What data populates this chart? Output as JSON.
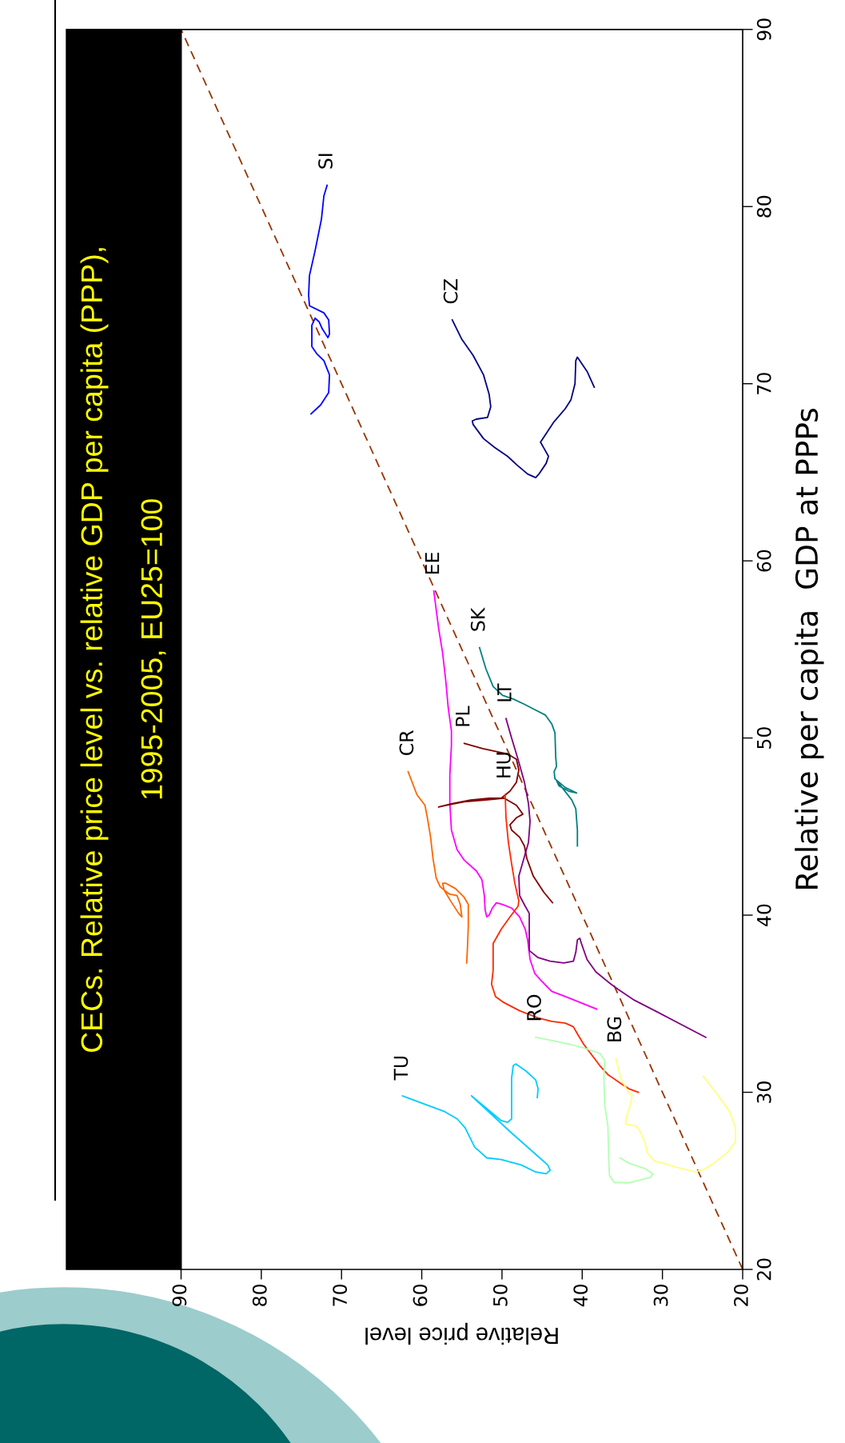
{
  "chart_data": {
    "type": "line",
    "title": "CECs. Relative price level vs. relative GDP per capita (PPP),",
    "subtitle": "1995-2005, EU25=100",
    "xlabel": "Relative price level",
    "ylabel": "Relative per capita  GDP at PPPs",
    "xlim": [
      90,
      20
    ],
    "xticks": [
      90,
      80,
      70,
      60,
      50,
      40,
      30,
      20
    ],
    "ylim": [
      20,
      90
    ],
    "yticks": [
      20,
      30,
      40,
      50,
      60,
      70,
      80,
      90
    ],
    "line_style": "solid",
    "series": [
      {
        "color": "#993300",
        "line_style": "dashed",
        "x": [
          20,
          90
        ],
        "values": [
          20,
          90
        ]
      },
      {
        "name": "SI",
        "color": "#0000ff",
        "x": [
          71.8,
          72.2,
          72.5,
          73.3,
          74.0,
          74.1,
          74.0,
          72.2,
          71.6,
          71.5,
          71.7,
          72.4,
          72.8,
          73.3,
          73.7,
          73.7,
          73.1,
          72.2,
          71.5,
          71.6,
          72.6,
          73.8
        ],
        "values": [
          81.2,
          80.6,
          79.3,
          77.5,
          76.1,
          75.0,
          74.4,
          74.0,
          73.6,
          72.8,
          72.6,
          73.1,
          73.5,
          73.7,
          73.3,
          72.1,
          71.7,
          71.3,
          70.5,
          69.5,
          68.8,
          68.3
        ]
      },
      {
        "name": "CZ",
        "color": "#000080",
        "x": [
          56.2,
          55.0,
          53.6,
          52.3,
          51.6,
          51.4,
          51.8,
          53.2,
          53.7,
          53.6,
          52.3,
          50.9,
          49.3,
          48.1,
          46.8,
          45.8,
          45.4,
          44.5,
          44.2,
          44.7,
          45.2,
          44.9,
          43.6,
          42.1,
          41.4,
          40.9,
          40.8,
          40.6,
          39.4,
          38.5
        ],
        "values": [
          73.6,
          72.5,
          71.6,
          70.5,
          69.4,
          68.7,
          68.1,
          68.0,
          67.9,
          67.7,
          66.9,
          66.4,
          65.9,
          65.4,
          64.9,
          64.7,
          64.9,
          65.5,
          65.9,
          66.3,
          66.7,
          66.9,
          67.8,
          68.6,
          69.1,
          70.0,
          71.3,
          71.5,
          70.7,
          69.8
        ]
      },
      {
        "name": "EE",
        "color": "#ff00ff",
        "x": [
          58.5,
          57.9,
          57.4,
          57.0,
          56.7,
          56.3,
          56.3,
          56.5,
          56.5,
          56.3,
          55.6,
          54.7,
          53.2,
          52.5,
          52.2,
          52.1,
          51.9,
          51.6,
          51.2,
          50.7,
          49.9,
          48.8,
          47.8,
          47.1,
          46.8,
          46.5,
          45.9,
          45.1,
          43.8,
          42.1,
          38.2
        ],
        "values": [
          58.3,
          56.2,
          54.8,
          53.2,
          51.7,
          50.4,
          49.6,
          47.9,
          46.3,
          44.8,
          43.7,
          43.1,
          42.5,
          42.0,
          41.1,
          40.3,
          39.9,
          40.0,
          40.4,
          40.7,
          40.6,
          40.4,
          39.9,
          39.2,
          38.6,
          37.5,
          36.7,
          36.3,
          35.7,
          35.4,
          34.7
        ]
      },
      {
        "name": "SK",
        "color": "#008080",
        "x": [
          52.8,
          52.0,
          51.1,
          49.9,
          48.6,
          47.2,
          45.9,
          44.6,
          43.8,
          43.4,
          43.3,
          43.2,
          43.5,
          43.4,
          42.1,
          40.7,
          41.7,
          42.9,
          43.2,
          41.3,
          40.8,
          40.6,
          40.6
        ],
        "values": [
          55.1,
          53.9,
          52.9,
          52.4,
          52.2,
          51.9,
          51.6,
          51.3,
          50.8,
          50.3,
          48.9,
          48.4,
          48.1,
          47.7,
          47.2,
          46.9,
          47.0,
          47.3,
          47.6,
          46.5,
          46.0,
          44.8,
          43.9
        ]
      },
      {
        "name": "LT",
        "color": "#800080",
        "x": [
          49.5,
          48.8,
          48.0,
          47.2,
          46.7,
          46.5,
          46.7,
          47.4,
          47.9,
          47.8,
          47.1,
          46.6,
          46.6,
          45.5,
          44.0,
          42.3,
          41.1,
          40.8,
          40.6,
          40.3,
          40.1,
          39.4,
          38.3,
          36.4,
          35.5,
          33.5,
          30.5,
          24.6
        ],
        "values": [
          51.1,
          50.0,
          48.8,
          47.5,
          46.3,
          45.3,
          44.1,
          43.0,
          42.2,
          41.1,
          40.5,
          40.1,
          38.0,
          37.6,
          37.4,
          37.3,
          37.4,
          37.9,
          38.6,
          38.7,
          38.4,
          37.5,
          36.8,
          36.1,
          35.8,
          35.2,
          34.5,
          33.1
        ]
      },
      {
        "name": "PL",
        "color": "#800000",
        "x": [
          54.7,
          52.4,
          49.3,
          48.2,
          47.9,
          48.2,
          49.0,
          50.1,
          51.6,
          53.9,
          56.2,
          57.9,
          57.0,
          54.7,
          52.0,
          49.7,
          48.2,
          47.4,
          48.2,
          49.0,
          48.8,
          47.8,
          47.2,
          46.9,
          46.1,
          44.8,
          43.7
        ],
        "values": [
          49.7,
          49.4,
          49.1,
          48.8,
          48.2,
          47.5,
          47.0,
          46.6,
          46.6,
          46.5,
          46.3,
          46.1,
          46.2,
          46.4,
          46.5,
          46.6,
          46.2,
          45.7,
          45.5,
          45.1,
          44.8,
          44.4,
          43.9,
          43.2,
          42.2,
          41.3,
          40.7
        ]
      },
      {
        "name": "HU",
        "color": "#ff2a00",
        "x": [
          49.6,
          49.5,
          49.2,
          48.8,
          48.4,
          47.9,
          48.0,
          49.0,
          50.1,
          51.1,
          51.1,
          51.3,
          50.8,
          49.9,
          47.8,
          45.5,
          43.8,
          42.1,
          41.1,
          40.6,
          39.8,
          38.8,
          37.8,
          36.8,
          35.2,
          34.2,
          33.0
        ],
        "values": [
          46.8,
          45.5,
          44.1,
          42.9,
          41.8,
          40.8,
          40.5,
          39.9,
          39.2,
          38.4,
          36.9,
          36.1,
          35.4,
          35.1,
          34.6,
          34.2,
          34.0,
          33.9,
          33.7,
          33.3,
          32.7,
          32.1,
          31.5,
          31.0,
          30.5,
          30.2,
          30.0
        ]
      },
      {
        "name": "CR",
        "color": "#ff6600",
        "x": [
          61.7,
          60.6,
          59.6,
          59.3,
          58.9,
          58.6,
          58.2,
          57.7,
          56.6,
          55.6,
          55.2,
          55.0,
          55.4,
          56.4,
          57.2,
          57.4,
          57.0,
          55.8,
          54.7,
          54.2,
          54.2,
          54.3,
          54.4
        ],
        "values": [
          48.1,
          46.8,
          46.2,
          45.5,
          44.4,
          43.2,
          42.1,
          41.6,
          41.2,
          41.1,
          40.6,
          39.9,
          40.1,
          40.8,
          41.4,
          41.8,
          41.8,
          41.5,
          41.0,
          40.6,
          39.4,
          38.2,
          37.3
        ]
      },
      {
        "name": "RO",
        "color": "#b3ffb3",
        "x": [
          45.8,
          43.5,
          41.5,
          39.8,
          37.8,
          37.2,
          37.3,
          37.2,
          36.8,
          36.7,
          36.6,
          36.0,
          34.0,
          31.5,
          31.2,
          32.2,
          34.2,
          35.3
        ],
        "values": [
          33.1,
          32.9,
          32.7,
          32.5,
          32.2,
          31.8,
          30.8,
          29.3,
          28.1,
          26.3,
          25.3,
          24.9,
          24.9,
          25.2,
          25.4,
          25.7,
          26.0,
          26.3
        ]
      },
      {
        "name": "BG",
        "color": "#ffff80",
        "x": [
          35.8,
          35.2,
          34.5,
          33.8,
          34.0,
          34.5,
          34.6,
          33.3,
          32.8,
          32.2,
          31.9,
          31.0,
          29.9,
          28.5,
          25.9,
          24.6,
          23.6,
          21.9,
          20.9,
          20.9,
          21.6,
          23.2,
          24.9
        ],
        "values": [
          31.9,
          30.8,
          30.2,
          29.8,
          29.3,
          28.6,
          28.2,
          28.1,
          27.8,
          27.2,
          26.6,
          26.1,
          26.0,
          25.8,
          25.5,
          25.7,
          26.0,
          26.6,
          27.2,
          28.0,
          28.9,
          29.9,
          30.9
        ]
      },
      {
        "name": "TU",
        "color": "#00ccff",
        "x": [
          62.4,
          57.1,
          55.6,
          54.6,
          53.4,
          51.9,
          50.1,
          47.6,
          45.8,
          44.5,
          44.0,
          44.3,
          45.3,
          48.8,
          53.8,
          50.1,
          49.3,
          48.8,
          48.8,
          48.6,
          48.3,
          47.0,
          45.8,
          45.5,
          45.6
        ],
        "values": [
          29.8,
          28.9,
          28.5,
          28.0,
          26.9,
          26.3,
          26.2,
          25.9,
          25.5,
          25.4,
          25.6,
          25.9,
          26.3,
          27.7,
          29.8,
          28.4,
          28.3,
          28.5,
          30.8,
          31.5,
          31.6,
          31.2,
          30.7,
          30.2,
          29.7
        ]
      }
    ]
  }
}
